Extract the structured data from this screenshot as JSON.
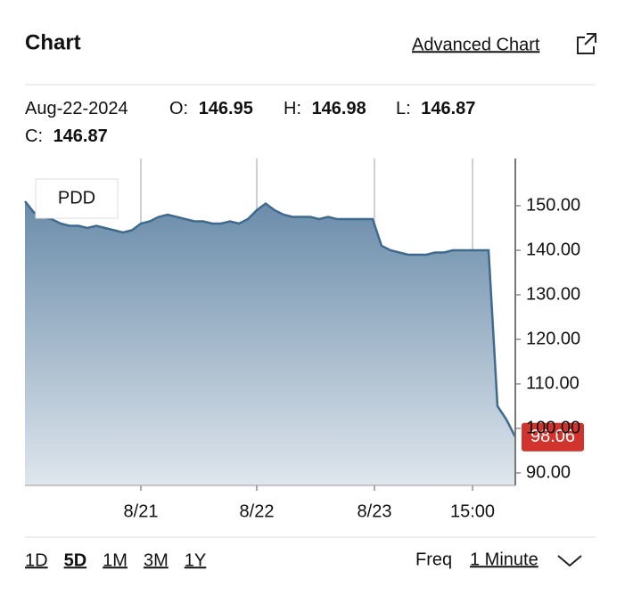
{
  "header": {
    "title": "Chart",
    "link": "Advanced Chart"
  },
  "quote": {
    "date": "Aug-22-2024",
    "open_label": "O:",
    "open": "146.95",
    "high_label": "H:",
    "high": "146.98",
    "low_label": "L:",
    "low": "146.87",
    "close_label": "C:",
    "close": "146.87"
  },
  "chart_data": {
    "type": "area",
    "legend": "PDD",
    "color": "#3f6a8f",
    "x": [
      0,
      2,
      4,
      6,
      8,
      10,
      12,
      14,
      16,
      18,
      20,
      22,
      24,
      26,
      28,
      30,
      32,
      34,
      36,
      38,
      40,
      42,
      44,
      46,
      48,
      50,
      52,
      54,
      56,
      58,
      60,
      62,
      64,
      66,
      68,
      70,
      72,
      74,
      76,
      78,
      80,
      82,
      84,
      86,
      88,
      90,
      92,
      94,
      96,
      98,
      100,
      102,
      104,
      106,
      108,
      110
    ],
    "series": [
      {
        "name": "PDD",
        "color": "#3f6a8f",
        "values": [
          151,
          148.5,
          147.5,
          147,
          146,
          145.5,
          145.5,
          145,
          145.5,
          145,
          144.5,
          144,
          144.5,
          146,
          146.5,
          147.5,
          148,
          147.5,
          147,
          146.5,
          146.5,
          146,
          146,
          146.5,
          146,
          147,
          149,
          150.5,
          149,
          148,
          147.5,
          147.5,
          147.5,
          147,
          147.5,
          147,
          147,
          147,
          147,
          147,
          141,
          140,
          139.5,
          139,
          139,
          139,
          139.5,
          139.5,
          140,
          140,
          140,
          140,
          140,
          105,
          102,
          98.06
        ],
        "value_labels": [
          null,
          null,
          null,
          null,
          null,
          null,
          null,
          null,
          null,
          null,
          null,
          null,
          null,
          null,
          null,
          null,
          null,
          null,
          null,
          null,
          null,
          null,
          null,
          null,
          null,
          null,
          null,
          null,
          null,
          null,
          null,
          null,
          null,
          null,
          null,
          null,
          null,
          null,
          null,
          null,
          null,
          null,
          null,
          null,
          null,
          null,
          null,
          null,
          null,
          null,
          null,
          null,
          null,
          null,
          null,
          "98.06"
        ]
      }
    ],
    "xlim": [
      0,
      110
    ],
    "xticks": [
      {
        "value": 26,
        "label": "8/21"
      },
      {
        "value": 52,
        "label": "8/22"
      },
      {
        "value": 78.4,
        "label": "8/23"
      },
      {
        "value": 100.4,
        "label": "15:00"
      }
    ],
    "ylim": [
      87.2,
      160.6
    ],
    "yticks": [
      {
        "value": 90,
        "label": "90.00"
      },
      {
        "value": 100,
        "label": "100.00"
      },
      {
        "value": 110,
        "label": "110.00"
      },
      {
        "value": 120,
        "label": "120.00"
      },
      {
        "value": 130,
        "label": "130.00"
      },
      {
        "value": 140,
        "label": "140.00"
      },
      {
        "value": 150,
        "label": "150.00"
      }
    ],
    "grid": true
  },
  "footer": {
    "ranges": [
      "1D",
      "5D",
      "1M",
      "3M",
      "1Y"
    ],
    "selected": "5D",
    "freq_label": "Freq",
    "freq": "1 Minute"
  }
}
